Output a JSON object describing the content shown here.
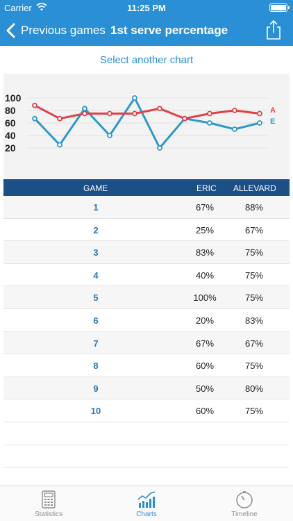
{
  "status_bar": {
    "carrier": "Carrier",
    "time": "11:25 PM"
  },
  "nav": {
    "back_label": "Previous games",
    "title": "1st serve percentage"
  },
  "select_chart_label": "Select another chart",
  "chart_data": {
    "type": "line",
    "x": [
      1,
      2,
      3,
      4,
      5,
      6,
      7,
      8,
      9,
      10
    ],
    "ylim": [
      0,
      100
    ],
    "yticks": [
      "100",
      "80",
      "60",
      "40",
      "20"
    ],
    "series": [
      {
        "name": "A",
        "color": "#e0404a",
        "values": [
          88,
          67,
          75,
          75,
          75,
          83,
          67,
          75,
          80,
          75
        ]
      },
      {
        "name": "E",
        "color": "#2e98c8",
        "values": [
          67,
          25,
          83,
          40,
          100,
          20,
          67,
          60,
          50,
          60
        ]
      }
    ],
    "grid": true,
    "legend": "right"
  },
  "table": {
    "headers": {
      "game": "GAME",
      "eric": "ERIC",
      "allevard": "ALLEVARD"
    },
    "rows": [
      {
        "game": "1",
        "eric": "67%",
        "allevard": "88%"
      },
      {
        "game": "2",
        "eric": "25%",
        "allevard": "67%"
      },
      {
        "game": "3",
        "eric": "83%",
        "allevard": "75%"
      },
      {
        "game": "4",
        "eric": "40%",
        "allevard": "75%"
      },
      {
        "game": "5",
        "eric": "100%",
        "allevard": "75%"
      },
      {
        "game": "6",
        "eric": "20%",
        "allevard": "83%"
      },
      {
        "game": "7",
        "eric": "67%",
        "allevard": "67%"
      },
      {
        "game": "8",
        "eric": "60%",
        "allevard": "75%"
      },
      {
        "game": "9",
        "eric": "50%",
        "allevard": "80%"
      },
      {
        "game": "10",
        "eric": "60%",
        "allevard": "75%"
      }
    ]
  },
  "tabs": [
    {
      "label": "Statistics",
      "icon": "calculator-icon",
      "active": false
    },
    {
      "label": "Charts",
      "icon": "chart-icon",
      "active": true
    },
    {
      "label": "Timeline",
      "icon": "stopwatch-icon",
      "active": false
    }
  ],
  "colors": {
    "accent": "#2b8fd6",
    "header": "#1c4f86",
    "series_a": "#e0404a",
    "series_e": "#2e98c8"
  }
}
